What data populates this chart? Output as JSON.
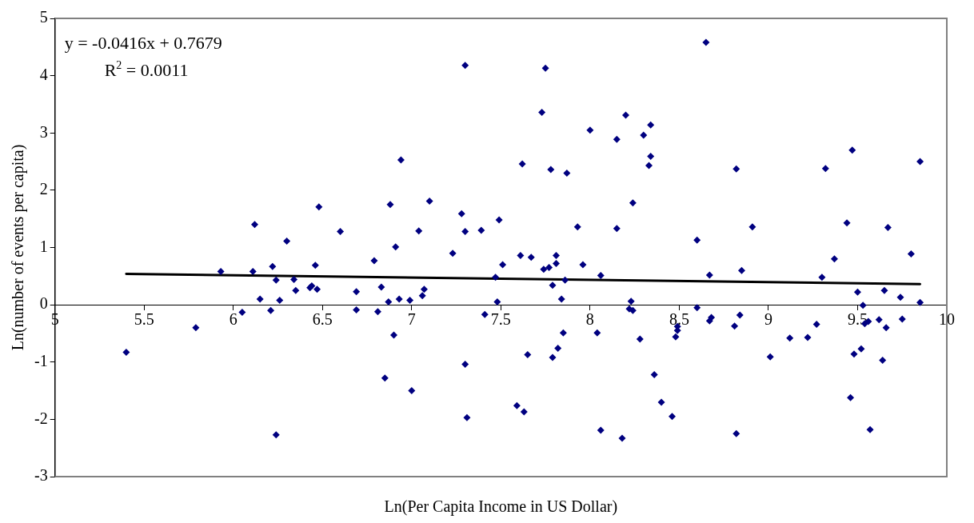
{
  "chart_data": {
    "type": "scatter",
    "xlabel": "Ln(Per Capita Income in US Dollar)",
    "ylabel": "Ln(number of events per capita)",
    "annotations": [
      "y = -0.0416x + 0.7679",
      "R$^{2}$ = 0.0011"
    ],
    "xlim": [
      5,
      10
    ],
    "xticks": [
      5,
      5.5,
      6,
      6.5,
      7,
      7.5,
      8,
      8.5,
      9,
      9.5,
      10
    ],
    "ylim": [
      -3,
      5
    ],
    "yticks": [
      -3,
      -2,
      -1,
      0,
      1,
      2,
      3,
      4,
      5
    ],
    "grid": false,
    "legend": false,
    "series": [
      {
        "color": "#000080",
        "marker": "diamond",
        "x": [
          5.4,
          5.79,
          5.93,
          6.05,
          6.11,
          6.12,
          6.15,
          6.21,
          6.22,
          6.24,
          6.24,
          6.26,
          6.3,
          6.34,
          6.35,
          6.43,
          6.44,
          6.46,
          6.47,
          6.48,
          6.6,
          6.69,
          6.69,
          6.79,
          6.81,
          6.83,
          6.85,
          6.87,
          6.88,
          6.9,
          6.91,
          6.93,
          6.94,
          6.99,
          7.0,
          7.04,
          7.06,
          7.07,
          7.1,
          7.23,
          7.28,
          7.3,
          7.3,
          7.3,
          7.31,
          7.39,
          7.41,
          7.47,
          7.48,
          7.49,
          7.51,
          7.59,
          7.61,
          7.62,
          7.63,
          7.65,
          7.67,
          7.73,
          7.74,
          7.75,
          7.77,
          7.78,
          7.79,
          7.79,
          7.81,
          7.81,
          7.82,
          7.84,
          7.85,
          7.86,
          7.87,
          7.93,
          7.96,
          8.0,
          8.04,
          8.06,
          8.06,
          8.15,
          8.15,
          8.18,
          8.2,
          8.22,
          8.23,
          8.24,
          8.24,
          8.28,
          8.3,
          8.33,
          8.34,
          8.34,
          8.36,
          8.4,
          8.46,
          8.48,
          8.49,
          8.49,
          8.6,
          8.6,
          8.65,
          8.67,
          8.67,
          8.68,
          8.81,
          8.82,
          8.82,
          8.84,
          8.85,
          8.91,
          9.01,
          9.12,
          9.22,
          9.27,
          9.3,
          9.32,
          9.37,
          9.44,
          9.46,
          9.47,
          9.48,
          9.5,
          9.52,
          9.53,
          9.54,
          9.56,
          9.57,
          9.62,
          9.64,
          9.65,
          9.66,
          9.67,
          9.74,
          9.75,
          9.8,
          9.85,
          9.85
        ],
        "values": [
          -0.83,
          -0.4,
          0.58,
          -0.13,
          0.58,
          1.4,
          0.1,
          -0.1,
          0.67,
          0.43,
          -2.27,
          0.08,
          1.11,
          0.44,
          0.25,
          0.3,
          0.33,
          0.69,
          0.27,
          1.71,
          1.28,
          0.23,
          -0.09,
          0.77,
          -0.12,
          0.31,
          -1.28,
          0.05,
          1.75,
          -0.53,
          1.01,
          0.1,
          2.53,
          0.08,
          -1.5,
          1.29,
          0.16,
          0.27,
          1.81,
          0.9,
          1.59,
          4.18,
          1.28,
          -1.04,
          -1.97,
          1.3,
          -0.17,
          0.48,
          0.05,
          1.48,
          0.7,
          -1.76,
          0.86,
          2.46,
          -1.87,
          -0.87,
          0.83,
          3.36,
          0.62,
          4.13,
          0.65,
          2.36,
          0.34,
          -0.92,
          0.86,
          0.72,
          -0.76,
          0.1,
          -0.49,
          0.43,
          2.3,
          1.36,
          0.7,
          3.05,
          -0.49,
          0.51,
          -2.19,
          2.89,
          1.33,
          -2.33,
          3.31,
          -0.07,
          0.06,
          -0.1,
          1.78,
          -0.6,
          2.96,
          2.43,
          2.59,
          3.14,
          -1.22,
          -1.7,
          -1.95,
          -0.56,
          -0.38,
          -0.45,
          1.13,
          -0.05,
          4.58,
          0.52,
          -0.28,
          -0.22,
          -0.37,
          2.37,
          -2.25,
          -0.18,
          0.6,
          1.36,
          -0.91,
          -0.58,
          -0.57,
          -0.34,
          0.48,
          2.38,
          0.8,
          1.43,
          -1.62,
          2.7,
          -0.86,
          0.22,
          -0.77,
          -0.01,
          -0.33,
          -0.29,
          -2.18,
          -0.26,
          -0.97,
          0.25,
          -0.4,
          1.35,
          0.13,
          -0.25,
          0.89,
          2.5,
          0.04
        ]
      },
      {
        "type": "line",
        "color": "#000000",
        "marker": "none",
        "x": [
          5.4,
          9.85
        ],
        "values": [
          0.54,
          0.36
        ]
      }
    ]
  }
}
